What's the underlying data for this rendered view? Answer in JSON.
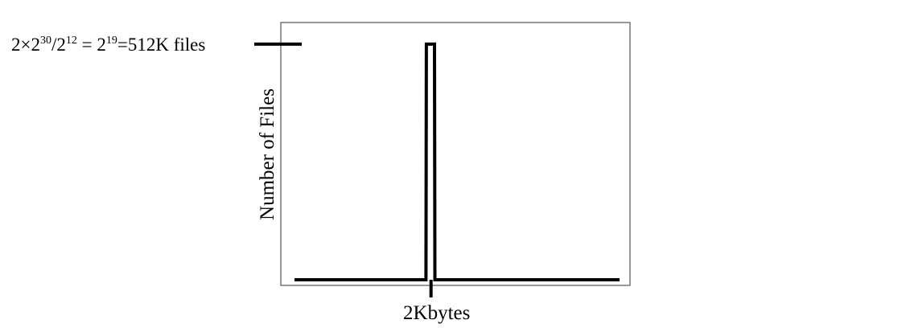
{
  "chart_data": {
    "type": "line",
    "title": "",
    "xlabel": "",
    "ylabel": "Number of Files",
    "x_ticks": [
      {
        "x": 2048,
        "label": "2Kbytes"
      }
    ],
    "y_ticks": [
      {
        "y": 524288,
        "label_parts": [
          {
            "text": "2×2",
            "sup": false
          },
          {
            "text": "30",
            "sup": true
          },
          {
            "text": "/2",
            "sup": false
          },
          {
            "text": "12",
            "sup": true
          },
          {
            "text": " = 2",
            "sup": false
          },
          {
            "text": "19",
            "sup": true
          },
          {
            "text": "=512K files",
            "sup": false
          }
        ]
      }
    ],
    "x_range": [
      0,
      4096
    ],
    "ylim": [
      0,
      576000
    ],
    "grid": false,
    "legend": "none",
    "series": [
      {
        "x": [
          200,
          1980,
          1985,
          2095,
          2100,
          4600
        ],
        "y": [
          0,
          0,
          524288,
          524288,
          0,
          0
        ]
      }
    ],
    "colors": {
      "line": "#000000",
      "frame": "#555555"
    }
  }
}
